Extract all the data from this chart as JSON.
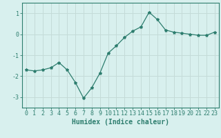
{
  "xlabel": "Humidex (Indice chaleur)",
  "ylabel": "",
  "x": [
    0,
    1,
    2,
    3,
    4,
    5,
    6,
    7,
    8,
    9,
    10,
    11,
    12,
    13,
    14,
    15,
    16,
    17,
    18,
    19,
    20,
    21,
    22,
    23
  ],
  "y": [
    -1.7,
    -1.75,
    -1.7,
    -1.6,
    -1.35,
    -1.7,
    -2.3,
    -3.05,
    -2.55,
    -1.85,
    -0.9,
    -0.55,
    -0.15,
    0.15,
    0.35,
    1.05,
    0.7,
    0.2,
    0.1,
    0.05,
    0.0,
    -0.05,
    -0.05,
    0.1
  ],
  "line_color": "#2d7d6e",
  "marker": "*",
  "marker_size": 3,
  "bg_color": "#d8f0ee",
  "grid_color": "#c4dbd8",
  "ylim": [
    -3.5,
    1.5
  ],
  "yticks": [
    -3,
    -2,
    -1,
    0,
    1
  ],
  "xlim": [
    -0.5,
    23.5
  ],
  "xticks": [
    0,
    1,
    2,
    3,
    4,
    5,
    6,
    7,
    8,
    9,
    10,
    11,
    12,
    13,
    14,
    15,
    16,
    17,
    18,
    19,
    20,
    21,
    22,
    23
  ],
  "tick_color": "#2d7d6e",
  "axis_color": "#2d7d6e",
  "xlabel_fontsize": 7.0,
  "tick_fontsize": 6.0
}
